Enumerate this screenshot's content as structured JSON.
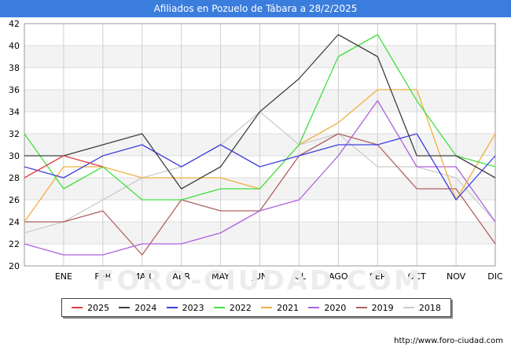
{
  "header": {
    "title": "Afiliados en Pozuelo de Tábara a 28/2/2025"
  },
  "source": "http://www.foro-ciudad.com",
  "watermark": "FORO-CIUDAD.COM",
  "chart_data": {
    "type": "line",
    "title": "Afiliados en Pozuelo de Tábara a 28/2/2025",
    "xlabel": "",
    "ylabel": "",
    "categories": [
      "",
      "ENE",
      "FEB",
      "MAR",
      "ABR",
      "MAY",
      "JUN",
      "JUL",
      "AGO",
      "SEP",
      "OCT",
      "NOV",
      "DIC"
    ],
    "ylim": [
      20,
      42
    ],
    "yticks": [
      20,
      22,
      24,
      26,
      28,
      30,
      32,
      34,
      36,
      38,
      40,
      42
    ],
    "grid": true,
    "legend_position": "bottom",
    "series": [
      {
        "name": "2025",
        "color": "#e04040",
        "values": [
          28,
          30,
          29,
          null,
          null,
          null,
          null,
          null,
          null,
          null,
          null,
          null,
          null
        ]
      },
      {
        "name": "2024",
        "color": "#404040",
        "values": [
          30,
          30,
          31,
          32,
          27,
          29,
          34,
          37,
          41,
          39,
          30,
          30,
          28
        ]
      },
      {
        "name": "2023",
        "color": "#4040e0",
        "values": [
          29,
          28,
          30,
          31,
          29,
          31,
          29,
          30,
          31,
          31,
          32,
          26,
          30
        ]
      },
      {
        "name": "2022",
        "color": "#40e040",
        "values": [
          32,
          27,
          29,
          26,
          26,
          27,
          27,
          31,
          39,
          41,
          35,
          30,
          29
        ]
      },
      {
        "name": "2021",
        "color": "#f0b040",
        "values": [
          24,
          29,
          29,
          28,
          28,
          28,
          27,
          31,
          33,
          36,
          36,
          26,
          32
        ]
      },
      {
        "name": "2020",
        "color": "#b060e0",
        "values": [
          22,
          21,
          21,
          22,
          22,
          23,
          25,
          26,
          30,
          35,
          29,
          29,
          24
        ]
      },
      {
        "name": "2019",
        "color": "#b06060",
        "values": [
          24,
          24,
          25,
          21,
          26,
          25,
          25,
          30,
          32,
          31,
          27,
          27,
          22
        ]
      },
      {
        "name": "2018",
        "color": "#cccccc",
        "values": [
          23,
          24,
          26,
          28,
          29,
          31,
          34,
          31,
          32,
          29,
          29,
          28,
          24
        ]
      }
    ]
  }
}
